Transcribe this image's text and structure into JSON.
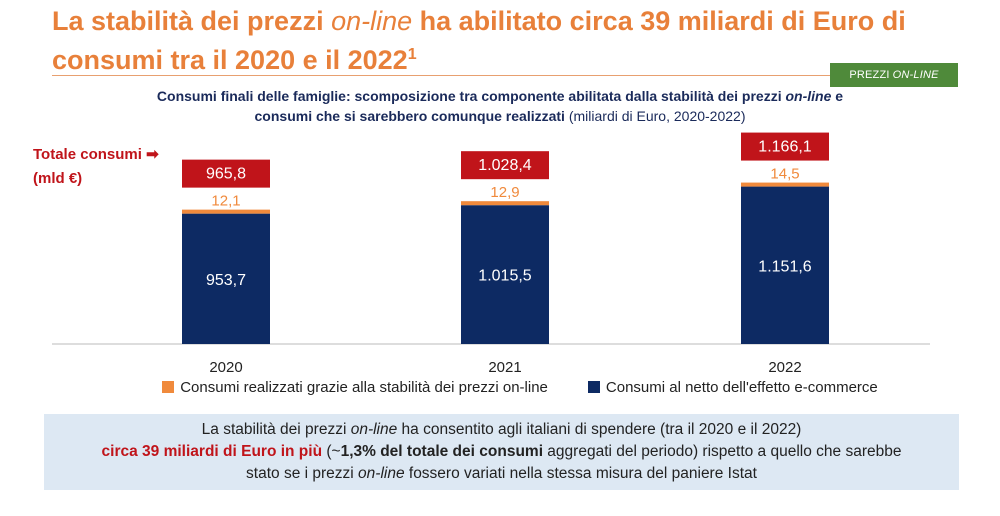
{
  "header": {
    "title_part1": "La stabilità dei prezzi ",
    "title_italic": "on-line",
    "title_part2": " ha abilitato circa 39 miliardi di Euro di consumi tra il 2020 e il 2022",
    "title_footnote": "1",
    "tag_prefix": "PREZZI",
    "tag_italic": "ON-LINE"
  },
  "chart_data": {
    "type": "bar",
    "stacked": true,
    "title_bold_1": "Consumi finali delle famiglie: scomposizione tra componente abilitata dalla stabilità dei prezzi ",
    "title_italic": "on-line",
    "title_bold_2": " e consumi che si sarebbero comunque realizzati",
    "title_normal": " (miliardi di Euro, 2020-2022)",
    "categories": [
      "2020",
      "2021",
      "2022"
    ],
    "series": [
      {
        "name": "Consumi al netto dell'effetto e-commerce",
        "color": "#0d2a63",
        "values": [
          953.7,
          1015.5,
          1151.6
        ],
        "labels": [
          "953,7",
          "1.015,5",
          "1.151,6"
        ]
      },
      {
        "name": "Consumi realizzati grazie alla stabilità dei prezzi on-line",
        "color": "#f08a3c",
        "values": [
          12.1,
          12.9,
          14.5
        ],
        "labels": [
          "12,1",
          "12,9",
          "14,5"
        ]
      }
    ],
    "totals": [
      965.8,
      1028.4,
      1166.1
    ],
    "total_labels": [
      "965,8",
      "1.028,4",
      "1.166,1"
    ],
    "totals_label_line1": "Totale consumi ➡",
    "totals_label_line2": "(mld €)",
    "total_color": "#c0141a",
    "legend_order": [
      1,
      0
    ]
  },
  "callout": {
    "line1_a": "La stabilità dei prezzi ",
    "line1_italic": "on-line",
    "line1_b": " ha consentito agli italiani di spendere (tra il 2020 e il 2022)",
    "line2_red": "circa 39 miliardi di Euro in più",
    "line2_a": " (~",
    "line2_bold": "1,3% del totale dei consumi",
    "line2_b": " aggregati del periodo) rispetto a quello che sarebbe",
    "line3_a": "stato se i prezzi ",
    "line3_italic": "on-line",
    "line3_b": " fossero variati nella stessa misura del paniere Istat"
  }
}
